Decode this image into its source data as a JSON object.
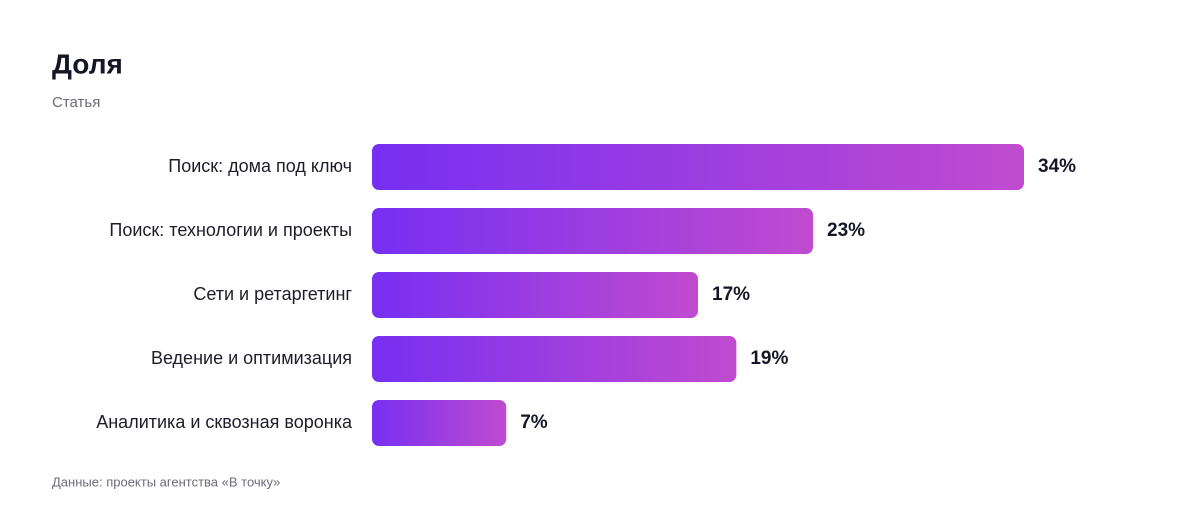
{
  "chart_data": {
    "type": "bar",
    "orientation": "horizontal",
    "title": "Доля",
    "subtitle": "Статья",
    "categories": [
      "Поиск: дома под ключ",
      "Поиск: технологии и проекты",
      "Сети и ретаргетинг",
      "Ведение и оптимизация",
      "Аналитика и сквозная воронка"
    ],
    "values": [
      34,
      23,
      17,
      19,
      7
    ],
    "value_labels": [
      "34%",
      "23%",
      "17%",
      "19%",
      "7%"
    ],
    "color": [
      "#772ff2",
      "#c04bcf"
    ],
    "source": "Данные: проекты агентства «В точку»"
  }
}
